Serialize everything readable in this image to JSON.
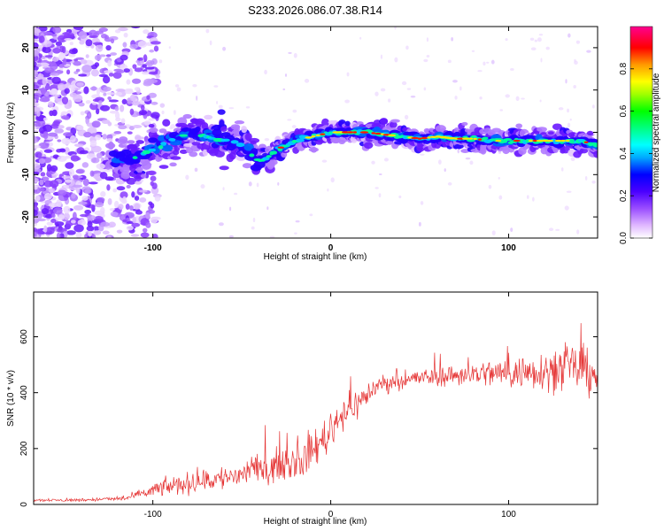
{
  "figure_title": "S233.2026.086.07.38.R14",
  "chart_data": [
    {
      "type": "heatmap",
      "title": "S233.2026.086.07.38.R14",
      "xlabel": "Height of straight line (km)",
      "ylabel": "Frequency (Hz)",
      "xlim": [
        -167,
        150
      ],
      "ylim": [
        -25,
        25
      ],
      "xticks": [
        -100,
        0,
        100
      ],
      "xtick_labels": [
        "-100",
        "0",
        "100"
      ],
      "yticks": [
        -20,
        -10,
        0,
        10,
        20
      ],
      "ytick_labels": [
        "-20",
        "-10",
        "0",
        "10",
        "20"
      ],
      "ridge": {
        "description_points_x": [
          -125,
          -110,
          -100,
          -90,
          -80,
          -70,
          -60,
          -50,
          -45,
          -40,
          -35,
          -30,
          -25,
          -20,
          -10,
          0,
          10,
          20,
          30,
          40,
          50,
          60,
          70,
          80,
          90,
          100,
          110,
          120,
          130,
          140,
          150
        ],
        "center_freq": [
          -6,
          -6,
          -4,
          -2,
          0,
          -1,
          -2,
          -3,
          -5,
          -7,
          -6,
          -4,
          -3,
          -2,
          -1,
          0,
          0,
          0,
          -0.5,
          -1,
          -1.5,
          -1,
          -1.5,
          -1.5,
          -2,
          -2,
          -2,
          -2,
          -2,
          -2,
          -3
        ]
      },
      "colorbar": {
        "label": "Normalized spectral amplitude",
        "range": [
          0,
          1
        ],
        "ticks": [
          0.0,
          0.2,
          0.4,
          0.6,
          0.8
        ],
        "tick_labels": [
          "0.0",
          "0.2",
          "0.4",
          "0.6",
          "0.8"
        ]
      }
    },
    {
      "type": "line",
      "xlabel": "Height of straight line (km)",
      "ylabel": "SNR (10 * v/v)",
      "xlim": [
        -167,
        150
      ],
      "ylim": [
        0,
        760
      ],
      "xticks": [
        -100,
        0,
        100
      ],
      "xtick_labels": [
        "-100",
        "0",
        "100"
      ],
      "yticks": [
        0,
        200,
        400,
        600
      ],
      "ytick_labels": [
        "0",
        "200",
        "400",
        "600"
      ],
      "series": [
        {
          "name": "SNR",
          "color": "#e53535",
          "x": [
            -167,
            -150,
            -130,
            -115,
            -105,
            -95,
            -85,
            -75,
            -65,
            -55,
            -45,
            -35,
            -25,
            -15,
            -5,
            0,
            5,
            15,
            25,
            35,
            45,
            55,
            65,
            75,
            85,
            95,
            105,
            115,
            125,
            135,
            145,
            150
          ],
          "y": [
            15,
            15,
            18,
            22,
            40,
            60,
            70,
            80,
            90,
            100,
            120,
            130,
            150,
            160,
            230,
            260,
            320,
            360,
            420,
            440,
            450,
            455,
            460,
            465,
            470,
            470,
            470,
            480,
            480,
            490,
            480,
            470
          ],
          "noise_amplitude": [
            8,
            8,
            10,
            12,
            30,
            45,
            55,
            60,
            65,
            70,
            75,
            80,
            90,
            95,
            100,
            100,
            95,
            80,
            55,
            45,
            45,
            50,
            55,
            60,
            70,
            80,
            90,
            100,
            110,
            120,
            130,
            130
          ]
        }
      ]
    }
  ]
}
